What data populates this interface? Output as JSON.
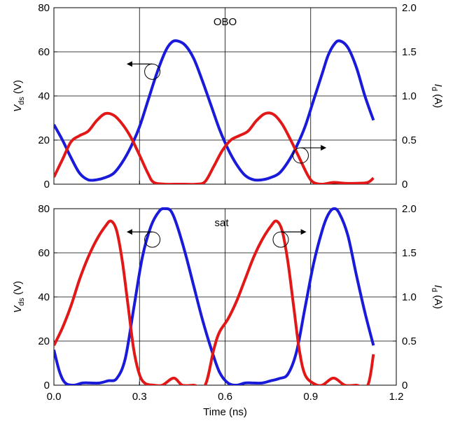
{
  "chart_data": [
    {
      "type": "line",
      "title": "",
      "annotation": "OBO",
      "xlabel": "",
      "ylabel_left": {
        "main": "V",
        "sub": "ds",
        "unit": " (V)"
      },
      "ylabel_right": {
        "main": "I",
        "sub": "d",
        "unit": " (A)"
      },
      "xlim": [
        0,
        1.2
      ],
      "ylim_left": [
        0,
        80
      ],
      "ylim_right": [
        0,
        2
      ],
      "xticks": [
        0,
        0.3,
        0.6,
        0.9,
        1.2
      ],
      "xtick_labels": [
        "",
        "",
        "",
        "",
        ""
      ],
      "yticks_left": [
        0,
        20,
        40,
        60,
        80
      ],
      "ytick_labels_left": [
        "0",
        "20",
        "40",
        "60",
        "80"
      ],
      "yticks_right": [
        0,
        0.5,
        1.0,
        1.5,
        2.0
      ],
      "ytick_labels_right": [
        "0",
        "0.5",
        "1.0",
        "1.5",
        "2.0"
      ],
      "grid": true,
      "series": [
        {
          "axis": "left",
          "color": "#1a1adb",
          "x": [
            0.0,
            0.03,
            0.06,
            0.09,
            0.12,
            0.15,
            0.18,
            0.21,
            0.24,
            0.27,
            0.3,
            0.33,
            0.36,
            0.39,
            0.41,
            0.43,
            0.46,
            0.49,
            0.52,
            0.55,
            0.58,
            0.61,
            0.64,
            0.67,
            0.7,
            0.73,
            0.76,
            0.79,
            0.82,
            0.85,
            0.88,
            0.91,
            0.94,
            0.96,
            0.98,
            1.0,
            1.03,
            1.06,
            1.09,
            1.12
          ],
          "y": [
            27,
            20,
            12,
            5,
            2,
            2,
            3,
            5,
            10,
            17,
            26,
            38,
            50,
            60,
            64,
            65,
            63,
            57,
            47,
            36,
            25,
            16,
            9,
            4,
            2,
            2,
            3,
            5,
            10,
            17,
            26,
            38,
            50,
            58,
            63,
            65,
            62,
            53,
            40,
            29
          ]
        },
        {
          "axis": "right",
          "color": "#e21818",
          "x": [
            0.0,
            0.03,
            0.06,
            0.09,
            0.12,
            0.15,
            0.18,
            0.21,
            0.24,
            0.27,
            0.3,
            0.33,
            0.35,
            0.39,
            0.42,
            0.46,
            0.5,
            0.53,
            0.56,
            0.59,
            0.62,
            0.65,
            0.68,
            0.71,
            0.74,
            0.77,
            0.8,
            0.83,
            0.86,
            0.89,
            0.91,
            0.94,
            0.98,
            1.02,
            1.06,
            1.1,
            1.12
          ],
          "y": [
            0.08,
            0.28,
            0.48,
            0.55,
            0.6,
            0.72,
            0.8,
            0.78,
            0.68,
            0.53,
            0.33,
            0.12,
            0.02,
            0.0,
            0.0,
            0.0,
            0.0,
            0.03,
            0.2,
            0.38,
            0.5,
            0.55,
            0.6,
            0.72,
            0.8,
            0.79,
            0.68,
            0.5,
            0.3,
            0.1,
            0.02,
            0.0,
            0.02,
            0.01,
            0.01,
            0.02,
            0.07
          ]
        }
      ],
      "arrows": [
        {
          "circle": [
            0.345,
            51
          ],
          "direction": "left",
          "length": 0.09
        },
        {
          "circle": [
            0.865,
            13
          ],
          "direction": "right",
          "length": 0.09
        }
      ]
    },
    {
      "type": "line",
      "title": "",
      "annotation": "sat",
      "xlabel": "Time (ns)",
      "ylabel_left": {
        "main": "V",
        "sub": "ds",
        "unit": " (V)"
      },
      "ylabel_right": {
        "main": "I",
        "sub": "d",
        "unit": " (A)"
      },
      "xlim": [
        0,
        1.2
      ],
      "ylim_left": [
        0,
        80
      ],
      "ylim_right": [
        0,
        2
      ],
      "xticks": [
        0,
        0.3,
        0.6,
        0.9,
        1.2
      ],
      "xtick_labels": [
        "0.0",
        "0.3",
        "0.6",
        "0.9",
        "1.2"
      ],
      "yticks_left": [
        0,
        20,
        40,
        60,
        80
      ],
      "ytick_labels_left": [
        "0",
        "20",
        "40",
        "60",
        "80"
      ],
      "yticks_right": [
        0,
        0.5,
        1.0,
        1.5,
        2.0
      ],
      "ytick_labels_right": [
        "0",
        "0.5",
        "1.0",
        "1.5",
        "2.0"
      ],
      "grid": true,
      "series": [
        {
          "axis": "left",
          "color": "#1a1adb",
          "x": [
            0.0,
            0.02,
            0.04,
            0.07,
            0.1,
            0.13,
            0.16,
            0.19,
            0.22,
            0.25,
            0.28,
            0.31,
            0.34,
            0.37,
            0.39,
            0.41,
            0.43,
            0.46,
            0.49,
            0.52,
            0.55,
            0.58,
            0.61,
            0.64,
            0.67,
            0.7,
            0.73,
            0.76,
            0.79,
            0.82,
            0.85,
            0.88,
            0.91,
            0.94,
            0.96,
            0.98,
            1.0,
            1.03,
            1.06,
            1.09,
            1.12
          ],
          "y": [
            16,
            6,
            1,
            0,
            1,
            1,
            1,
            2,
            3,
            12,
            35,
            58,
            72,
            79,
            80,
            79,
            73,
            60,
            45,
            30,
            17,
            6,
            1,
            0,
            1,
            1,
            1,
            2,
            3,
            5,
            15,
            35,
            55,
            70,
            77,
            80,
            78,
            68,
            50,
            33,
            18
          ]
        },
        {
          "axis": "right",
          "color": "#e21818",
          "x": [
            0.0,
            0.03,
            0.06,
            0.09,
            0.12,
            0.15,
            0.18,
            0.2,
            0.22,
            0.24,
            0.26,
            0.28,
            0.3,
            0.32,
            0.35,
            0.38,
            0.42,
            0.45,
            0.49,
            0.53,
            0.56,
            0.58,
            0.61,
            0.64,
            0.67,
            0.7,
            0.73,
            0.76,
            0.78,
            0.8,
            0.82,
            0.84,
            0.86,
            0.88,
            0.91,
            0.94,
            0.98,
            1.02,
            1.06,
            1.1,
            1.12
          ],
          "y": [
            0.45,
            0.65,
            0.9,
            1.2,
            1.45,
            1.65,
            1.8,
            1.86,
            1.75,
            1.4,
            0.9,
            0.4,
            0.12,
            0.02,
            0.0,
            0.0,
            0.08,
            0.0,
            0.0,
            0.0,
            0.4,
            0.6,
            0.75,
            0.95,
            1.2,
            1.45,
            1.65,
            1.8,
            1.86,
            1.75,
            1.4,
            0.9,
            0.4,
            0.12,
            0.02,
            0.0,
            0.08,
            0.0,
            0.0,
            0.0,
            0.35
          ]
        }
      ],
      "arrows": [
        {
          "circle": [
            0.345,
            66
          ],
          "direction": "left",
          "length": 0.09
        },
        {
          "circle": [
            0.795,
            66
          ],
          "direction": "right",
          "length": 0.09
        }
      ]
    }
  ]
}
